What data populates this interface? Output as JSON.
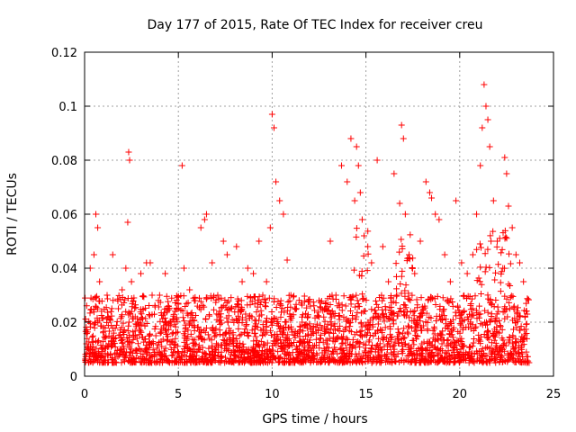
{
  "colors": {
    "series": "#ff0000",
    "grid": "#a0a0a0"
  },
  "chart_data": {
    "type": "scatter",
    "title": "Day 177 of 2015, Rate Of TEC Index for receiver creu",
    "xlabel": "GPS time / hours",
    "ylabel": "ROTI / TECUs",
    "xlim": [
      0,
      25
    ],
    "ylim": [
      0,
      0.12
    ],
    "xticks": [
      0,
      5,
      10,
      15,
      20,
      25
    ],
    "yticks": [
      0,
      0.02,
      0.04,
      0.06,
      0.08,
      0.1,
      0.12
    ],
    "xtick_labels": [
      "0",
      "5",
      "10",
      "15",
      "20",
      "25"
    ],
    "ytick_labels": [
      "0",
      "0.02",
      "0.04",
      "0.06",
      "0.08",
      "0.1",
      "0.12"
    ],
    "grid": true,
    "marker": "plus",
    "series": [
      {
        "name": "ROTI",
        "x": [
          0.1,
          0.3,
          0.5,
          0.6,
          0.7,
          0.8,
          1.0,
          1.2,
          1.5,
          1.8,
          2.0,
          2.2,
          2.3,
          2.35,
          2.4,
          2.5,
          2.7,
          3.0,
          3.3,
          3.5,
          3.6,
          3.8,
          4.0,
          4.3,
          4.6,
          5.0,
          5.2,
          5.3,
          5.6,
          5.9,
          6.2,
          6.4,
          6.5,
          6.8,
          7.1,
          7.4,
          7.6,
          7.8,
          8.1,
          8.4,
          8.7,
          9.0,
          9.3,
          9.5,
          9.7,
          9.9,
          10.0,
          10.1,
          10.2,
          10.4,
          10.6,
          10.8,
          11.0,
          11.3,
          11.6,
          11.9,
          12.2,
          12.5,
          12.8,
          13.1,
          13.4,
          13.7,
          14.0,
          14.2,
          14.4,
          14.5,
          14.6,
          14.7,
          14.8,
          14.9,
          15.1,
          15.3,
          15.6,
          15.9,
          16.2,
          16.5,
          16.8,
          16.9,
          17.0,
          17.1,
          17.3,
          17.6,
          17.9,
          18.2,
          18.4,
          18.5,
          18.7,
          18.9,
          19.2,
          19.5,
          19.8,
          20.1,
          20.4,
          20.7,
          20.9,
          21.1,
          21.2,
          21.3,
          21.4,
          21.5,
          21.6,
          21.8,
          22.0,
          22.3,
          22.4,
          22.5,
          22.6,
          22.8,
          23.0,
          23.2,
          23.4,
          23.6
        ],
        "y": [
          0.012,
          0.04,
          0.045,
          0.06,
          0.055,
          0.035,
          0.018,
          0.03,
          0.045,
          0.025,
          0.032,
          0.04,
          0.057,
          0.083,
          0.08,
          0.035,
          0.022,
          0.038,
          0.042,
          0.042,
          0.03,
          0.015,
          0.03,
          0.038,
          0.02,
          0.025,
          0.078,
          0.04,
          0.032,
          0.028,
          0.055,
          0.058,
          0.06,
          0.042,
          0.03,
          0.05,
          0.045,
          0.025,
          0.048,
          0.035,
          0.04,
          0.038,
          0.05,
          0.03,
          0.035,
          0.055,
          0.097,
          0.092,
          0.072,
          0.065,
          0.06,
          0.043,
          0.03,
          0.025,
          0.02,
          0.022,
          0.018,
          0.028,
          0.025,
          0.05,
          0.03,
          0.078,
          0.072,
          0.088,
          0.065,
          0.085,
          0.078,
          0.068,
          0.058,
          0.052,
          0.048,
          0.042,
          0.08,
          0.048,
          0.035,
          0.075,
          0.064,
          0.093,
          0.088,
          0.06,
          0.045,
          0.038,
          0.05,
          0.072,
          0.068,
          0.066,
          0.06,
          0.058,
          0.045,
          0.035,
          0.065,
          0.042,
          0.038,
          0.045,
          0.06,
          0.078,
          0.092,
          0.108,
          0.1,
          0.095,
          0.085,
          0.065,
          0.05,
          0.04,
          0.081,
          0.075,
          0.063,
          0.055,
          0.045,
          0.042,
          0.035,
          0.023
        ],
        "base_band": [
          0.005,
          0.03
        ]
      }
    ]
  }
}
